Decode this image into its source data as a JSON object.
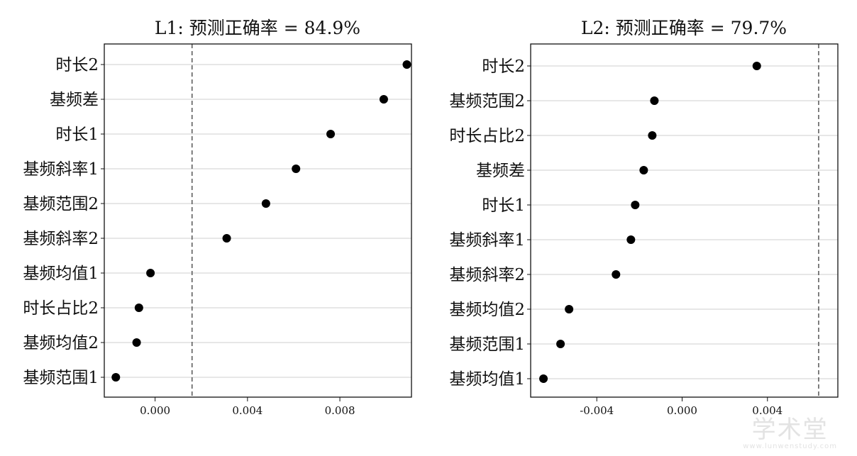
{
  "chart_data": [
    {
      "type": "scatter",
      "title": "L1: 预测正确率 = 84.9%",
      "categories": [
        "时长2",
        "基频差",
        "时长1",
        "基频斜率1",
        "基频范围2",
        "基频斜率2",
        "基频均值1",
        "时长占比2",
        "基频均值2",
        "基频范围1"
      ],
      "values": [
        0.0109,
        0.0099,
        0.0076,
        0.0061,
        0.0048,
        0.0031,
        -0.0002,
        -0.0007,
        -0.0008,
        -0.0017
      ],
      "xlim": [
        -0.0022,
        0.0111
      ],
      "xticks": [
        0.0,
        0.004,
        0.008
      ],
      "xtick_labels": [
        "0.000",
        "0.004",
        "0.008"
      ],
      "reference_line": 0.0016,
      "grid": "horizontal",
      "xlabel": "",
      "ylabel": ""
    },
    {
      "type": "scatter",
      "title": "L2: 预测正确率 = 79.7%",
      "categories": [
        "时长2",
        "基频范围2",
        "时长占比2",
        "基频差",
        "时长1",
        "基频斜率1",
        "基频斜率2",
        "基频均值2",
        "基频范围1",
        "基频均值1"
      ],
      "values": [
        0.0035,
        -0.0013,
        -0.0014,
        -0.0018,
        -0.0022,
        -0.0024,
        -0.0031,
        -0.0053,
        -0.0057,
        -0.0065
      ],
      "xlim": [
        -0.0071,
        0.0073
      ],
      "xticks": [
        -0.004,
        0.0,
        0.004
      ],
      "xtick_labels": [
        "-0.004",
        "0.000",
        "0.004"
      ],
      "reference_line": 0.0064,
      "grid": "horizontal",
      "xlabel": "",
      "ylabel": ""
    }
  ],
  "watermark": {
    "main": "学术堂",
    "sub": "www.lunwenstudy.com"
  }
}
